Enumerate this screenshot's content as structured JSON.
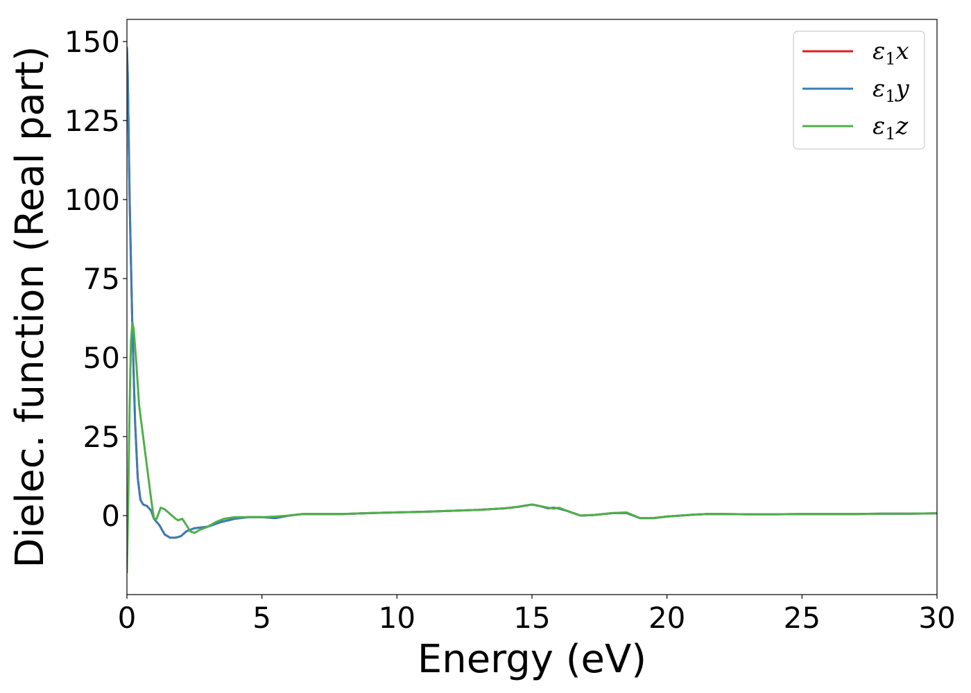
{
  "chart_data": {
    "type": "line",
    "title": "",
    "xlabel": "Energy (eV)",
    "ylabel": "Dielec. function (Real part)",
    "xlim": [
      0,
      30
    ],
    "ylim": [
      -25,
      157
    ],
    "x_ticks": [
      0,
      5,
      10,
      15,
      20,
      25,
      30
    ],
    "y_ticks": [
      0,
      25,
      50,
      75,
      100,
      125,
      150
    ],
    "grid": false,
    "legend_position": "top-right",
    "series": [
      {
        "name": "ε1x",
        "legend_main": "ε",
        "legend_sub": "1",
        "legend_suffix": "x",
        "color": "#e41a1c",
        "x": [
          0,
          0.03,
          0.1,
          0.2,
          0.3,
          0.4,
          0.5,
          0.6,
          0.75,
          0.9,
          1.0,
          1.2,
          1.4,
          1.6,
          1.8,
          2.0,
          2.2,
          2.5,
          3.0,
          3.5,
          4.0,
          4.5,
          5.0,
          5.5,
          6.0,
          6.5,
          7.0,
          8.0,
          9.0,
          10.0,
          11.0,
          12.0,
          13.0,
          14.0,
          14.5,
          15.0,
          15.3,
          15.6,
          15.8,
          16.0,
          16.3,
          16.8,
          17.3,
          18.0,
          18.5,
          19.0,
          19.5,
          20.0,
          20.5,
          21.0,
          21.5,
          22.0,
          23.0,
          24.0,
          25.0,
          26.0,
          27.0,
          28.0,
          29.0,
          30.0
        ],
        "y": [
          148,
          140,
          100,
          60,
          30,
          12,
          5,
          3.5,
          3,
          1.5,
          -1,
          -3,
          -6,
          -7,
          -7,
          -6.5,
          -5,
          -4,
          -3.5,
          -2,
          -1,
          -0.5,
          -0.5,
          -0.8,
          0,
          0.5,
          0.5,
          0.5,
          0.8,
          1,
          1.2,
          1.5,
          1.8,
          2.3,
          2.8,
          3.5,
          3,
          2.3,
          2.5,
          2.2,
          1.5,
          0,
          0.2,
          0.8,
          0.8,
          -0.8,
          -0.8,
          -0.3,
          0,
          0.3,
          0.5,
          0.5,
          0.4,
          0.4,
          0.5,
          0.5,
          0.5,
          0.6,
          0.6,
          0.7
        ]
      },
      {
        "name": "ε1y",
        "legend_main": "ε",
        "legend_sub": "1",
        "legend_suffix": "y",
        "color": "#377eb8",
        "x": [
          0,
          0.03,
          0.1,
          0.2,
          0.3,
          0.4,
          0.5,
          0.6,
          0.75,
          0.9,
          1.0,
          1.2,
          1.4,
          1.6,
          1.8,
          2.0,
          2.2,
          2.5,
          3.0,
          3.5,
          4.0,
          4.5,
          5.0,
          5.5,
          6.0,
          6.5,
          7.0,
          8.0,
          9.0,
          10.0,
          11.0,
          12.0,
          13.0,
          14.0,
          14.5,
          15.0,
          15.3,
          15.6,
          15.8,
          16.0,
          16.3,
          16.8,
          17.3,
          18.0,
          18.5,
          19.0,
          19.5,
          20.0,
          20.5,
          21.0,
          21.5,
          22.0,
          23.0,
          24.0,
          25.0,
          26.0,
          27.0,
          28.0,
          29.0,
          30.0
        ],
        "y": [
          148,
          140,
          100,
          60,
          30,
          12,
          5,
          3.5,
          3,
          1.5,
          -1,
          -3,
          -6,
          -7,
          -7,
          -6.5,
          -5,
          -4,
          -3.5,
          -2,
          -1,
          -0.5,
          -0.5,
          -0.8,
          0,
          0.5,
          0.5,
          0.5,
          0.8,
          1,
          1.2,
          1.5,
          1.8,
          2.3,
          2.8,
          3.5,
          3,
          2.3,
          2.5,
          2.2,
          1.5,
          0,
          0.2,
          0.8,
          0.8,
          -0.8,
          -0.8,
          -0.3,
          0,
          0.3,
          0.5,
          0.5,
          0.4,
          0.4,
          0.5,
          0.5,
          0.5,
          0.6,
          0.6,
          0.7
        ]
      },
      {
        "name": "ε1z",
        "legend_main": "ε",
        "legend_sub": "1",
        "legend_suffix": "z",
        "color": "#4daf4a",
        "x": [
          0,
          0.05,
          0.1,
          0.15,
          0.2,
          0.25,
          0.35,
          0.45,
          0.6,
          0.75,
          0.9,
          1.0,
          1.1,
          1.25,
          1.4,
          1.6,
          1.8,
          1.9,
          2.05,
          2.2,
          2.35,
          2.5,
          2.7,
          3.0,
          3.3,
          3.6,
          4.0,
          4.5,
          5.0,
          5.5,
          6.0,
          6.5,
          7.0,
          8.0,
          9.0,
          10.0,
          11.0,
          12.0,
          13.0,
          14.0,
          14.5,
          15.0,
          15.3,
          15.6,
          15.8,
          16.0,
          16.3,
          16.8,
          17.3,
          18.0,
          18.5,
          19.0,
          19.5,
          20.0,
          20.5,
          21.0,
          21.5,
          22.0,
          23.0,
          24.0,
          25.0,
          26.0,
          27.0,
          28.0,
          29.0,
          30.0
        ],
        "y": [
          -18,
          5,
          35,
          55,
          61,
          59,
          48,
          35,
          25,
          15,
          5,
          -1,
          -1,
          2.5,
          2,
          0.5,
          -1,
          -1.5,
          -1,
          -3,
          -5,
          -5.5,
          -4.5,
          -3.5,
          -2,
          -1,
          -0.5,
          -0.5,
          -0.5,
          -0.3,
          0,
          0.5,
          0.5,
          0.5,
          0.8,
          1,
          1.2,
          1.5,
          1.8,
          2.3,
          2.8,
          3.5,
          3,
          2.5,
          2.2,
          2.5,
          1.5,
          0,
          0.2,
          0.8,
          1,
          -0.8,
          -0.8,
          -0.3,
          0,
          0.3,
          0.5,
          0.5,
          0.4,
          0.4,
          0.5,
          0.5,
          0.5,
          0.6,
          0.6,
          0.7
        ]
      }
    ]
  }
}
